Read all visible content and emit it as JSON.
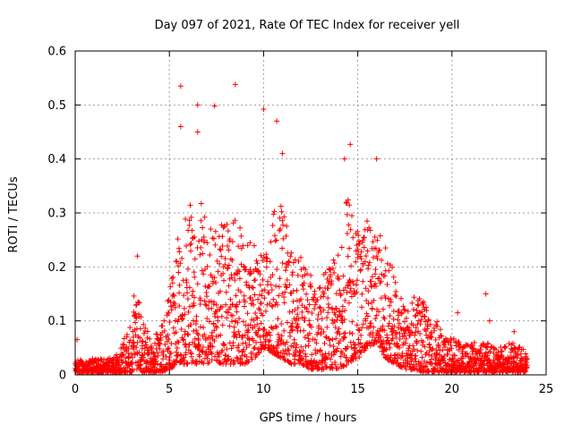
{
  "chart_data": {
    "type": "scatter",
    "title": "Day 097 of 2021, Rate Of TEC Index for receiver yell",
    "xlabel": "GPS time / hours",
    "ylabel": "ROTI / TECUs",
    "xlim": [
      0,
      25
    ],
    "ylim": [
      0,
      0.6
    ],
    "xticks": [
      "0",
      "5",
      "10",
      "15",
      "20",
      "25"
    ],
    "yticks": [
      "0",
      "0.1",
      "0.2",
      "0.3",
      "0.4",
      "0.5",
      "0.6"
    ],
    "grid": true,
    "marker": "+",
    "color": "#ff0000",
    "notable_points": [
      {
        "x": 5.6,
        "y": 0.535
      },
      {
        "x": 8.5,
        "y": 0.538
      },
      {
        "x": 6.5,
        "y": 0.5
      },
      {
        "x": 7.4,
        "y": 0.498
      },
      {
        "x": 10.0,
        "y": 0.492
      },
      {
        "x": 10.7,
        "y": 0.47
      },
      {
        "x": 14.6,
        "y": 0.427
      },
      {
        "x": 16.0,
        "y": 0.4
      },
      {
        "x": 14.3,
        "y": 0.4
      },
      {
        "x": 11.0,
        "y": 0.41
      },
      {
        "x": 5.6,
        "y": 0.46
      },
      {
        "x": 6.5,
        "y": 0.45
      },
      {
        "x": 3.3,
        "y": 0.22
      },
      {
        "x": 21.8,
        "y": 0.15
      },
      {
        "x": 20.3,
        "y": 0.115
      },
      {
        "x": 22.0,
        "y": 0.1
      },
      {
        "x": 23.3,
        "y": 0.08
      },
      {
        "x": 0.1,
        "y": 0.065
      }
    ],
    "envelope": {
      "hours": [
        0,
        1,
        2,
        2.5,
        3,
        3.2,
        3.5,
        4,
        4.5,
        5,
        5.5,
        6,
        6.5,
        7,
        7.5,
        8,
        8.5,
        9,
        9.5,
        10,
        10.5,
        11,
        11.5,
        12,
        12.5,
        13,
        13.5,
        14,
        14.5,
        15,
        15.5,
        16,
        16.5,
        17,
        17.5,
        18,
        18.5,
        19,
        19.5,
        20,
        20.5,
        21,
        21.5,
        22,
        22.5,
        23,
        23.5,
        24
      ],
      "upper": [
        0.03,
        0.03,
        0.035,
        0.06,
        0.1,
        0.2,
        0.12,
        0.07,
        0.08,
        0.15,
        0.3,
        0.32,
        0.35,
        0.3,
        0.3,
        0.28,
        0.3,
        0.27,
        0.24,
        0.22,
        0.3,
        0.33,
        0.22,
        0.22,
        0.2,
        0.18,
        0.2,
        0.24,
        0.35,
        0.28,
        0.3,
        0.27,
        0.25,
        0.18,
        0.12,
        0.15,
        0.14,
        0.12,
        0.08,
        0.07,
        0.06,
        0.06,
        0.06,
        0.06,
        0.05,
        0.06,
        0.06,
        0.04
      ],
      "lower": [
        0.005,
        0.005,
        0.005,
        0.005,
        0.005,
        0.01,
        0.005,
        0.005,
        0.005,
        0.01,
        0.02,
        0.02,
        0.02,
        0.02,
        0.02,
        0.02,
        0.02,
        0.02,
        0.03,
        0.05,
        0.04,
        0.03,
        0.02,
        0.02,
        0.01,
        0.01,
        0.01,
        0.01,
        0.02,
        0.03,
        0.05,
        0.06,
        0.03,
        0.02,
        0.01,
        0.01,
        0.005,
        0.005,
        0.005,
        0.005,
        0.005,
        0.005,
        0.005,
        0.005,
        0.005,
        0.005,
        0.005,
        0.005
      ]
    }
  }
}
